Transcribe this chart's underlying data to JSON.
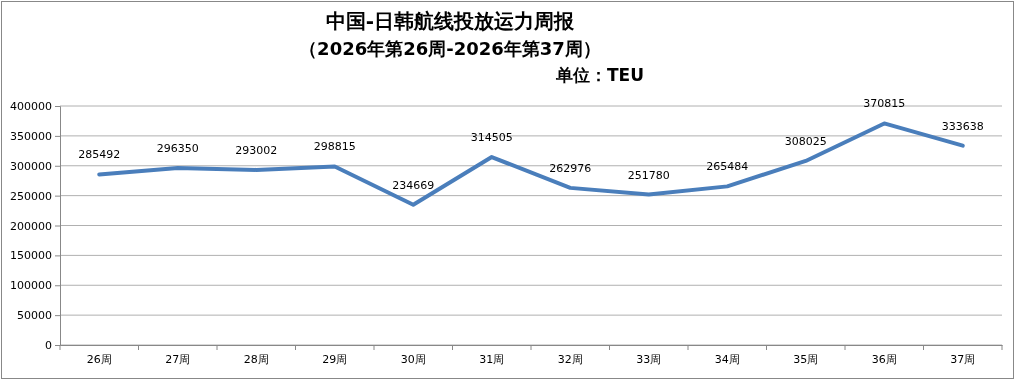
{
  "chart_data": {
    "type": "line",
    "title": "中国-日韩航线投放运力周报",
    "subtitle": "（2026年第26周-2026年第37周）",
    "annotations": [
      "单位：TEU"
    ],
    "categories": [
      "26周",
      "27周",
      "28周",
      "29周",
      "30周",
      "31周",
      "32周",
      "33周",
      "34周",
      "35周",
      "36周",
      "37周"
    ],
    "series": [
      {
        "color": "#4a7ebb",
        "values": [
          285492,
          296350,
          293002,
          298815,
          234669,
          314505,
          262976,
          251780,
          265484,
          308025,
          370815,
          333638
        ]
      }
    ],
    "ylim": [
      0,
      400000
    ],
    "yticks": [
      0,
      50000,
      100000,
      150000,
      200000,
      250000,
      300000,
      350000,
      400000
    ],
    "grid": "y",
    "data_labels": true,
    "legend": false,
    "marker": "none",
    "line_style": "solid"
  }
}
